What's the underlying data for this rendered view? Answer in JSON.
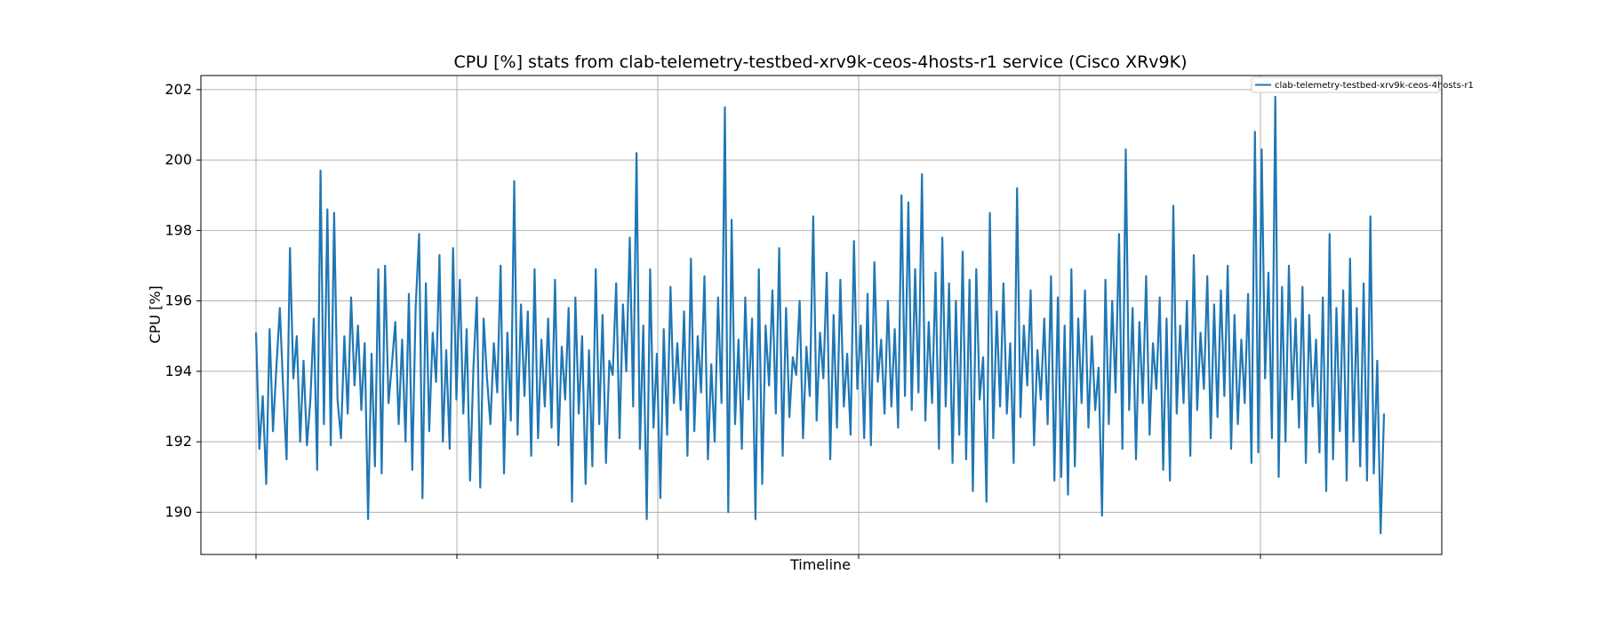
{
  "chart_data": {
    "type": "line",
    "title": "CPU [%] stats from clab-telemetry-testbed-xrv9k-ceos-4hosts-r1 service (Cisco XRv9K)",
    "xlabel": "Timeline",
    "ylabel": "CPU [%]",
    "ylim": [
      188.8,
      202.4
    ],
    "yticks": [
      190,
      192,
      194,
      196,
      198,
      200,
      202
    ],
    "xticks": [],
    "grid": true,
    "legend_position": "top-right",
    "colors": {
      "series": "#1f77b4",
      "grid": "#b0b0b0"
    },
    "series": [
      {
        "name": "clab-telemetry-testbed-xrv9k-ceos-4hosts-r1",
        "values": [
          195.1,
          191.8,
          193.3,
          190.8,
          195.2,
          192.3,
          194.1,
          195.8,
          193.5,
          191.5,
          197.5,
          193.8,
          195.0,
          192.0,
          194.3,
          191.9,
          193.2,
          195.5,
          191.2,
          199.7,
          192.5,
          198.6,
          191.9,
          198.5,
          193.2,
          192.1,
          195.0,
          192.8,
          196.1,
          193.6,
          195.3,
          192.9,
          194.8,
          189.8,
          194.5,
          191.3,
          196.9,
          191.1,
          197.0,
          193.1,
          194.2,
          195.4,
          192.5,
          194.9,
          192.0,
          196.2,
          191.2,
          195.8,
          197.9,
          190.4,
          196.5,
          192.3,
          195.1,
          193.7,
          197.3,
          192.0,
          194.6,
          191.8,
          197.5,
          193.2,
          196.6,
          192.8,
          195.2,
          190.9,
          194.1,
          196.1,
          190.7,
          195.5,
          193.8,
          192.5,
          194.8,
          193.4,
          197.0,
          191.1,
          195.1,
          192.6,
          199.4,
          192.2,
          195.9,
          193.3,
          195.7,
          191.6,
          196.9,
          192.1,
          194.9,
          193.0,
          195.5,
          192.4,
          196.6,
          191.9,
          194.7,
          193.2,
          195.8,
          190.3,
          196.1,
          192.8,
          195.0,
          190.8,
          194.6,
          191.3,
          196.9,
          192.5,
          195.6,
          191.4,
          194.3,
          193.9,
          196.5,
          192.1,
          195.9,
          194.0,
          197.8,
          193.0,
          200.2,
          191.8,
          195.3,
          189.8,
          196.9,
          192.4,
          194.5,
          190.4,
          195.2,
          192.2,
          196.4,
          193.1,
          194.8,
          192.9,
          195.7,
          191.6,
          197.2,
          192.3,
          195.0,
          193.4,
          196.7,
          191.5,
          194.2,
          192.0,
          196.1,
          193.1,
          201.5,
          190.0,
          198.3,
          192.5,
          194.9,
          191.8,
          196.1,
          193.2,
          195.5,
          189.8,
          196.9,
          190.8,
          195.3,
          193.6,
          196.3,
          192.8,
          197.5,
          191.6,
          195.8,
          192.7,
          194.4,
          193.9,
          196.0,
          192.1,
          194.7,
          193.3,
          198.4,
          192.6,
          195.1,
          193.8,
          196.8,
          191.5,
          195.6,
          192.4,
          196.6,
          193.0,
          194.5,
          192.2,
          197.7,
          193.5,
          195.3,
          192.1,
          196.2,
          191.9,
          197.1,
          193.7,
          194.9,
          192.8,
          196.0,
          193.0,
          195.2,
          192.4,
          199.0,
          193.3,
          198.8,
          192.9,
          196.9,
          193.4,
          199.6,
          192.6,
          195.4,
          193.1,
          196.8,
          191.8,
          197.8,
          193.0,
          196.5,
          191.4,
          196.0,
          192.2,
          197.4,
          191.5,
          196.6,
          190.6,
          196.9,
          193.2,
          194.4,
          190.3,
          198.5,
          192.1,
          195.7,
          193.0,
          196.5,
          192.8,
          194.8,
          191.4,
          199.2,
          192.7,
          195.3,
          193.6,
          196.3,
          191.9,
          194.6,
          193.2,
          195.5,
          192.5,
          196.7,
          190.9,
          196.1,
          191.0,
          195.3,
          190.5,
          196.9,
          191.3,
          195.5,
          193.1,
          196.3,
          192.4,
          195.0,
          192.9,
          194.1,
          189.9,
          196.6,
          192.5,
          196.0,
          193.4,
          197.9,
          191.8,
          200.3,
          192.9,
          195.8,
          191.5,
          195.4,
          193.1,
          196.7,
          192.2,
          194.8,
          193.5,
          196.1,
          191.2,
          195.5,
          190.9,
          198.7,
          192.8,
          195.3,
          193.1,
          196.0,
          191.6,
          197.3,
          192.9,
          195.1,
          193.5,
          196.7,
          192.1,
          195.9,
          192.7,
          196.3,
          193.3,
          197.0,
          191.8,
          195.6,
          192.5,
          194.9,
          193.1,
          196.2,
          191.4,
          200.8,
          191.7,
          200.3,
          193.8,
          196.8,
          192.1,
          201.8,
          191.0,
          196.4,
          192.0,
          197.0,
          193.2,
          195.5,
          192.4,
          196.4,
          191.4,
          195.6,
          193.0,
          194.9,
          191.7,
          196.1,
          190.6,
          197.9,
          191.5,
          195.8,
          192.3,
          196.3,
          190.9,
          197.2,
          192.0,
          195.8,
          191.3,
          196.5,
          190.9,
          198.4,
          191.1,
          194.3,
          189.4,
          192.8
        ]
      }
    ]
  }
}
